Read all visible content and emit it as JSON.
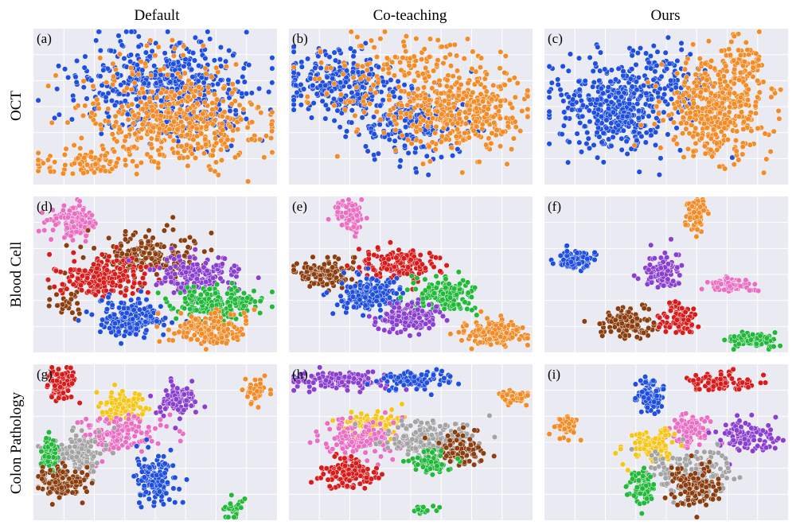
{
  "figure": {
    "column_titles": [
      "Default",
      "Co-teaching",
      "Ours"
    ],
    "row_titles": [
      "OCT",
      "Blood Cell",
      "Colon Pathology"
    ],
    "panel_labels": [
      "(a)",
      "(b)",
      "(c)",
      "(d)",
      "(e)",
      "(f)",
      "(g)",
      "(h)",
      "(i)"
    ]
  },
  "palette": {
    "blue": "#1f4fe0",
    "orange": "#f28c28",
    "pink": "#ea6fc3",
    "brown": "#8b3e0f",
    "red": "#d81b1b",
    "purple": "#8a3fd1",
    "green": "#22b83a",
    "gray": "#a3a3a3",
    "yellow": "#f5c518"
  },
  "chart_data": [
    {
      "type": "scatter",
      "panel": "(a)",
      "clusters": [
        {
          "color": "blue",
          "cx": 0.55,
          "cy": 0.38,
          "sx": 0.18,
          "sy": 0.17,
          "n": 520
        },
        {
          "color": "orange",
          "cx": 0.6,
          "cy": 0.62,
          "sx": 0.17,
          "sy": 0.13,
          "n": 380
        },
        {
          "color": "orange",
          "cx": 0.22,
          "cy": 0.86,
          "sx": 0.12,
          "sy": 0.04,
          "n": 90
        },
        {
          "color": "orange",
          "cx": 0.5,
          "cy": 0.4,
          "sx": 0.18,
          "sy": 0.18,
          "n": 90
        }
      ]
    },
    {
      "type": "scatter",
      "panel": "(b)",
      "clusters": [
        {
          "color": "blue",
          "cx": 0.22,
          "cy": 0.36,
          "sx": 0.12,
          "sy": 0.1,
          "n": 260
        },
        {
          "color": "blue",
          "cx": 0.5,
          "cy": 0.62,
          "sx": 0.12,
          "sy": 0.12,
          "n": 200
        },
        {
          "color": "orange",
          "cx": 0.7,
          "cy": 0.52,
          "sx": 0.13,
          "sy": 0.14,
          "n": 380
        },
        {
          "color": "orange",
          "cx": 0.38,
          "cy": 0.38,
          "sx": 0.16,
          "sy": 0.16,
          "n": 90
        },
        {
          "color": "orange",
          "cx": 0.52,
          "cy": 0.2,
          "sx": 0.12,
          "sy": 0.08,
          "n": 50
        }
      ]
    },
    {
      "type": "scatter",
      "panel": "(c)",
      "clusters": [
        {
          "color": "blue",
          "cx": 0.3,
          "cy": 0.5,
          "sx": 0.13,
          "sy": 0.15,
          "n": 420
        },
        {
          "color": "blue",
          "cx": 0.5,
          "cy": 0.3,
          "sx": 0.1,
          "sy": 0.1,
          "n": 80
        },
        {
          "color": "orange",
          "cx": 0.7,
          "cy": 0.5,
          "sx": 0.11,
          "sy": 0.15,
          "n": 420
        },
        {
          "color": "orange",
          "cx": 0.82,
          "cy": 0.22,
          "sx": 0.04,
          "sy": 0.08,
          "n": 60
        }
      ]
    },
    {
      "type": "scatter",
      "panel": "(d)",
      "clusters": [
        {
          "color": "pink",
          "cx": 0.17,
          "cy": 0.16,
          "sx": 0.05,
          "sy": 0.05,
          "n": 140
        },
        {
          "color": "brown",
          "cx": 0.47,
          "cy": 0.38,
          "sx": 0.1,
          "sy": 0.07,
          "n": 180
        },
        {
          "color": "brown",
          "cx": 0.14,
          "cy": 0.68,
          "sx": 0.03,
          "sy": 0.06,
          "n": 30
        },
        {
          "color": "red",
          "cx": 0.28,
          "cy": 0.52,
          "sx": 0.09,
          "sy": 0.06,
          "n": 200
        },
        {
          "color": "purple",
          "cx": 0.68,
          "cy": 0.5,
          "sx": 0.08,
          "sy": 0.06,
          "n": 170
        },
        {
          "color": "green",
          "cx": 0.75,
          "cy": 0.68,
          "sx": 0.09,
          "sy": 0.05,
          "n": 170
        },
        {
          "color": "blue",
          "cx": 0.4,
          "cy": 0.78,
          "sx": 0.07,
          "sy": 0.06,
          "n": 180
        },
        {
          "color": "orange",
          "cx": 0.72,
          "cy": 0.85,
          "sx": 0.08,
          "sy": 0.05,
          "n": 170
        }
      ]
    },
    {
      "type": "scatter",
      "panel": "(e)",
      "clusters": [
        {
          "color": "pink",
          "cx": 0.25,
          "cy": 0.13,
          "sx": 0.03,
          "sy": 0.05,
          "n": 80
        },
        {
          "color": "brown",
          "cx": 0.15,
          "cy": 0.5,
          "sx": 0.06,
          "sy": 0.04,
          "n": 120
        },
        {
          "color": "red",
          "cx": 0.45,
          "cy": 0.43,
          "sx": 0.08,
          "sy": 0.05,
          "n": 150
        },
        {
          "color": "blue",
          "cx": 0.33,
          "cy": 0.63,
          "sx": 0.06,
          "sy": 0.06,
          "n": 170
        },
        {
          "color": "green",
          "cx": 0.65,
          "cy": 0.63,
          "sx": 0.06,
          "sy": 0.06,
          "n": 170
        },
        {
          "color": "purple",
          "cx": 0.5,
          "cy": 0.78,
          "sx": 0.06,
          "sy": 0.05,
          "n": 150
        },
        {
          "color": "orange",
          "cx": 0.83,
          "cy": 0.88,
          "sx": 0.06,
          "sy": 0.04,
          "n": 140
        }
      ]
    },
    {
      "type": "scatter",
      "panel": "(f)",
      "clusters": [
        {
          "color": "orange",
          "cx": 0.62,
          "cy": 0.11,
          "sx": 0.02,
          "sy": 0.05,
          "n": 90
        },
        {
          "color": "blue",
          "cx": 0.12,
          "cy": 0.41,
          "sx": 0.04,
          "sy": 0.03,
          "n": 90
        },
        {
          "color": "purple",
          "cx": 0.48,
          "cy": 0.48,
          "sx": 0.04,
          "sy": 0.06,
          "n": 100
        },
        {
          "color": "pink",
          "cx": 0.77,
          "cy": 0.57,
          "sx": 0.05,
          "sy": 0.02,
          "n": 80
        },
        {
          "color": "brown",
          "cx": 0.34,
          "cy": 0.81,
          "sx": 0.06,
          "sy": 0.05,
          "n": 120
        },
        {
          "color": "red",
          "cx": 0.55,
          "cy": 0.78,
          "sx": 0.04,
          "sy": 0.05,
          "n": 80
        },
        {
          "color": "green",
          "cx": 0.85,
          "cy": 0.92,
          "sx": 0.05,
          "sy": 0.025,
          "n": 90
        }
      ]
    },
    {
      "type": "scatter",
      "panel": "(g)",
      "clusters": [
        {
          "color": "red",
          "cx": 0.12,
          "cy": 0.12,
          "sx": 0.03,
          "sy": 0.06,
          "n": 90
        },
        {
          "color": "yellow",
          "cx": 0.37,
          "cy": 0.27,
          "sx": 0.05,
          "sy": 0.05,
          "n": 110
        },
        {
          "color": "purple",
          "cx": 0.6,
          "cy": 0.22,
          "sx": 0.04,
          "sy": 0.05,
          "n": 90
        },
        {
          "color": "orange",
          "cx": 0.91,
          "cy": 0.17,
          "sx": 0.02,
          "sy": 0.04,
          "n": 40
        },
        {
          "color": "pink",
          "cx": 0.35,
          "cy": 0.45,
          "sx": 0.08,
          "sy": 0.06,
          "n": 150
        },
        {
          "color": "gray",
          "cx": 0.17,
          "cy": 0.58,
          "sx": 0.06,
          "sy": 0.06,
          "n": 150
        },
        {
          "color": "green",
          "cx": 0.07,
          "cy": 0.56,
          "sx": 0.02,
          "sy": 0.06,
          "n": 60
        },
        {
          "color": "brown",
          "cx": 0.12,
          "cy": 0.75,
          "sx": 0.05,
          "sy": 0.05,
          "n": 130
        },
        {
          "color": "blue",
          "cx": 0.5,
          "cy": 0.73,
          "sx": 0.04,
          "sy": 0.08,
          "n": 130
        },
        {
          "color": "green",
          "cx": 0.82,
          "cy": 0.93,
          "sx": 0.02,
          "sy": 0.04,
          "n": 25
        }
      ]
    },
    {
      "type": "scatter",
      "panel": "(h)",
      "clusters": [
        {
          "color": "purple",
          "cx": 0.22,
          "cy": 0.11,
          "sx": 0.1,
          "sy": 0.03,
          "n": 140
        },
        {
          "color": "blue",
          "cx": 0.52,
          "cy": 0.1,
          "sx": 0.07,
          "sy": 0.03,
          "n": 90
        },
        {
          "color": "orange",
          "cx": 0.92,
          "cy": 0.21,
          "sx": 0.04,
          "sy": 0.02,
          "n": 45
        },
        {
          "color": "yellow",
          "cx": 0.35,
          "cy": 0.38,
          "sx": 0.06,
          "sy": 0.04,
          "n": 90
        },
        {
          "color": "pink",
          "cx": 0.3,
          "cy": 0.48,
          "sx": 0.08,
          "sy": 0.06,
          "n": 150
        },
        {
          "color": "gray",
          "cx": 0.58,
          "cy": 0.48,
          "sx": 0.1,
          "sy": 0.06,
          "n": 170
        },
        {
          "color": "brown",
          "cx": 0.72,
          "cy": 0.55,
          "sx": 0.05,
          "sy": 0.05,
          "n": 80
        },
        {
          "color": "green",
          "cx": 0.58,
          "cy": 0.62,
          "sx": 0.04,
          "sy": 0.04,
          "n": 60
        },
        {
          "color": "red",
          "cx": 0.25,
          "cy": 0.7,
          "sx": 0.06,
          "sy": 0.05,
          "n": 130
        },
        {
          "color": "green",
          "cx": 0.55,
          "cy": 0.93,
          "sx": 0.03,
          "sy": 0.015,
          "n": 15
        }
      ]
    },
    {
      "type": "scatter",
      "panel": "(i)",
      "clusters": [
        {
          "color": "red",
          "cx": 0.72,
          "cy": 0.12,
          "sx": 0.07,
          "sy": 0.03,
          "n": 80
        },
        {
          "color": "blue",
          "cx": 0.43,
          "cy": 0.2,
          "sx": 0.03,
          "sy": 0.05,
          "n": 90
        },
        {
          "color": "orange",
          "cx": 0.08,
          "cy": 0.4,
          "sx": 0.025,
          "sy": 0.035,
          "n": 50
        },
        {
          "color": "pink",
          "cx": 0.6,
          "cy": 0.42,
          "sx": 0.04,
          "sy": 0.05,
          "n": 90
        },
        {
          "color": "purple",
          "cx": 0.83,
          "cy": 0.45,
          "sx": 0.06,
          "sy": 0.05,
          "n": 110
        },
        {
          "color": "yellow",
          "cx": 0.45,
          "cy": 0.52,
          "sx": 0.05,
          "sy": 0.05,
          "n": 110
        },
        {
          "color": "gray",
          "cx": 0.62,
          "cy": 0.68,
          "sx": 0.09,
          "sy": 0.07,
          "n": 170
        },
        {
          "color": "brown",
          "cx": 0.62,
          "cy": 0.8,
          "sx": 0.05,
          "sy": 0.07,
          "n": 110
        },
        {
          "color": "green",
          "cx": 0.4,
          "cy": 0.8,
          "sx": 0.03,
          "sy": 0.05,
          "n": 80
        }
      ]
    }
  ]
}
